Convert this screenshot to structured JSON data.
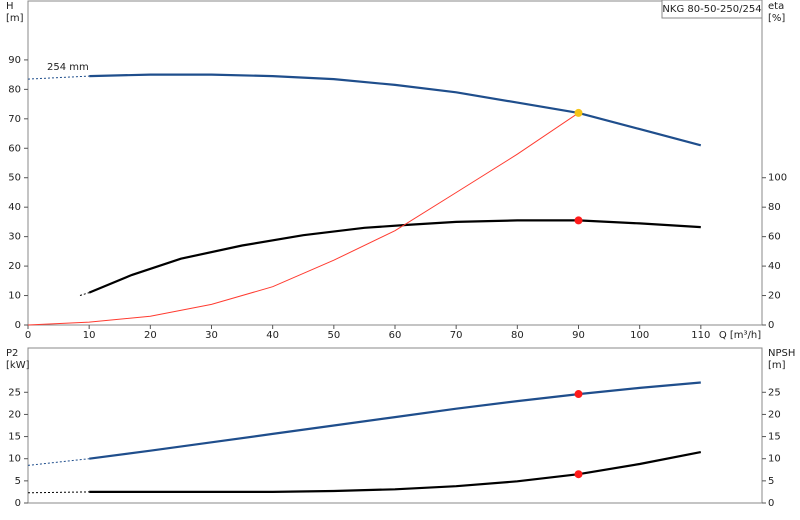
{
  "chart_data": [
    {
      "type": "line",
      "title": "NKG 80-50-250/254",
      "annotation": "254 mm",
      "x_label": "Q [m³/h]",
      "y_label": "H",
      "y_unit": "[m]",
      "y2_label": "eta",
      "y2_unit": "[%]",
      "xlim": [
        0,
        120
      ],
      "xticks": [
        0,
        10,
        20,
        30,
        40,
        50,
        60,
        70,
        80,
        90,
        100,
        110
      ],
      "ylim": [
        0,
        110
      ],
      "yticks": [
        0,
        10,
        20,
        30,
        40,
        50,
        60,
        70,
        80,
        90
      ],
      "y2lim": [
        0,
        220
      ],
      "y2ticks": [
        0,
        20,
        40,
        60,
        80,
        100
      ],
      "series": [
        {
          "color": "#1f4e8c",
          "dash": true,
          "x": [
            0,
            10
          ],
          "values": [
            83.5,
            84.5
          ]
        },
        {
          "color": "#1f4e8c",
          "x": [
            10,
            20,
            30,
            40,
            50,
            60,
            70,
            80,
            90,
            100,
            110
          ],
          "values": [
            84.5,
            85,
            85,
            84.5,
            83.5,
            81.5,
            79,
            75.5,
            72,
            66.5,
            61
          ]
        },
        {
          "color": "#000000",
          "dash": true,
          "axis": "y2",
          "x": [
            8.5,
            10
          ],
          "values": [
            20,
            22
          ]
        },
        {
          "color": "#000000",
          "axis": "y2",
          "x": [
            10,
            17,
            25,
            35,
            45,
            55,
            62,
            70,
            80,
            90,
            100,
            110
          ],
          "values": [
            22,
            34,
            45,
            54,
            61,
            66,
            68,
            70,
            71,
            71,
            69,
            66.5
          ]
        },
        {
          "color": "#ff3b30",
          "thin": true,
          "x": [
            0,
            10,
            20,
            30,
            40,
            50,
            60,
            70,
            80,
            90
          ],
          "values": [
            0,
            1,
            3,
            7,
            13,
            22,
            32,
            45,
            58,
            72
          ]
        },
        {
          "color": "#f5c518",
          "points": true,
          "x": [
            90
          ],
          "values": [
            72
          ]
        },
        {
          "color": "#ff1a1a",
          "points": true,
          "axis": "y2",
          "x": [
            90
          ],
          "values": [
            71
          ]
        }
      ]
    },
    {
      "type": "line",
      "y_label": "P2",
      "y_unit": "[kW]",
      "y2_label": "NPSH",
      "y2_unit": "[m]",
      "xlim": [
        0,
        120
      ],
      "ylim": [
        0,
        35
      ],
      "yticks": [
        0,
        5,
        10,
        15,
        20,
        25
      ],
      "y2lim": [
        0,
        35
      ],
      "y2ticks": [
        0,
        5,
        10,
        15,
        20,
        25
      ],
      "series": [
        {
          "color": "#1f4e8c",
          "dash": true,
          "x": [
            0,
            10
          ],
          "values": [
            8.5,
            10
          ]
        },
        {
          "color": "#1f4e8c",
          "x": [
            10,
            20,
            30,
            40,
            50,
            60,
            70,
            80,
            90,
            100,
            110
          ],
          "values": [
            10,
            11.8,
            13.7,
            15.6,
            17.5,
            19.4,
            21.3,
            23,
            24.6,
            26,
            27.2
          ]
        },
        {
          "color": "#000000",
          "dash": true,
          "axis": "y2",
          "x": [
            0,
            10
          ],
          "values": [
            2.3,
            2.5
          ]
        },
        {
          "color": "#000000",
          "axis": "y2",
          "x": [
            10,
            20,
            30,
            40,
            50,
            60,
            70,
            80,
            90,
            100,
            110
          ],
          "values": [
            2.5,
            2.5,
            2.5,
            2.5,
            2.7,
            3.1,
            3.8,
            4.9,
            6.5,
            8.8,
            11.5
          ]
        },
        {
          "color": "#ff1a1a",
          "points": true,
          "x": [
            90
          ],
          "values": [
            24.6
          ]
        },
        {
          "color": "#ff1a1a",
          "points": true,
          "axis": "y2",
          "x": [
            90
          ],
          "values": [
            6.5
          ]
        }
      ]
    }
  ]
}
